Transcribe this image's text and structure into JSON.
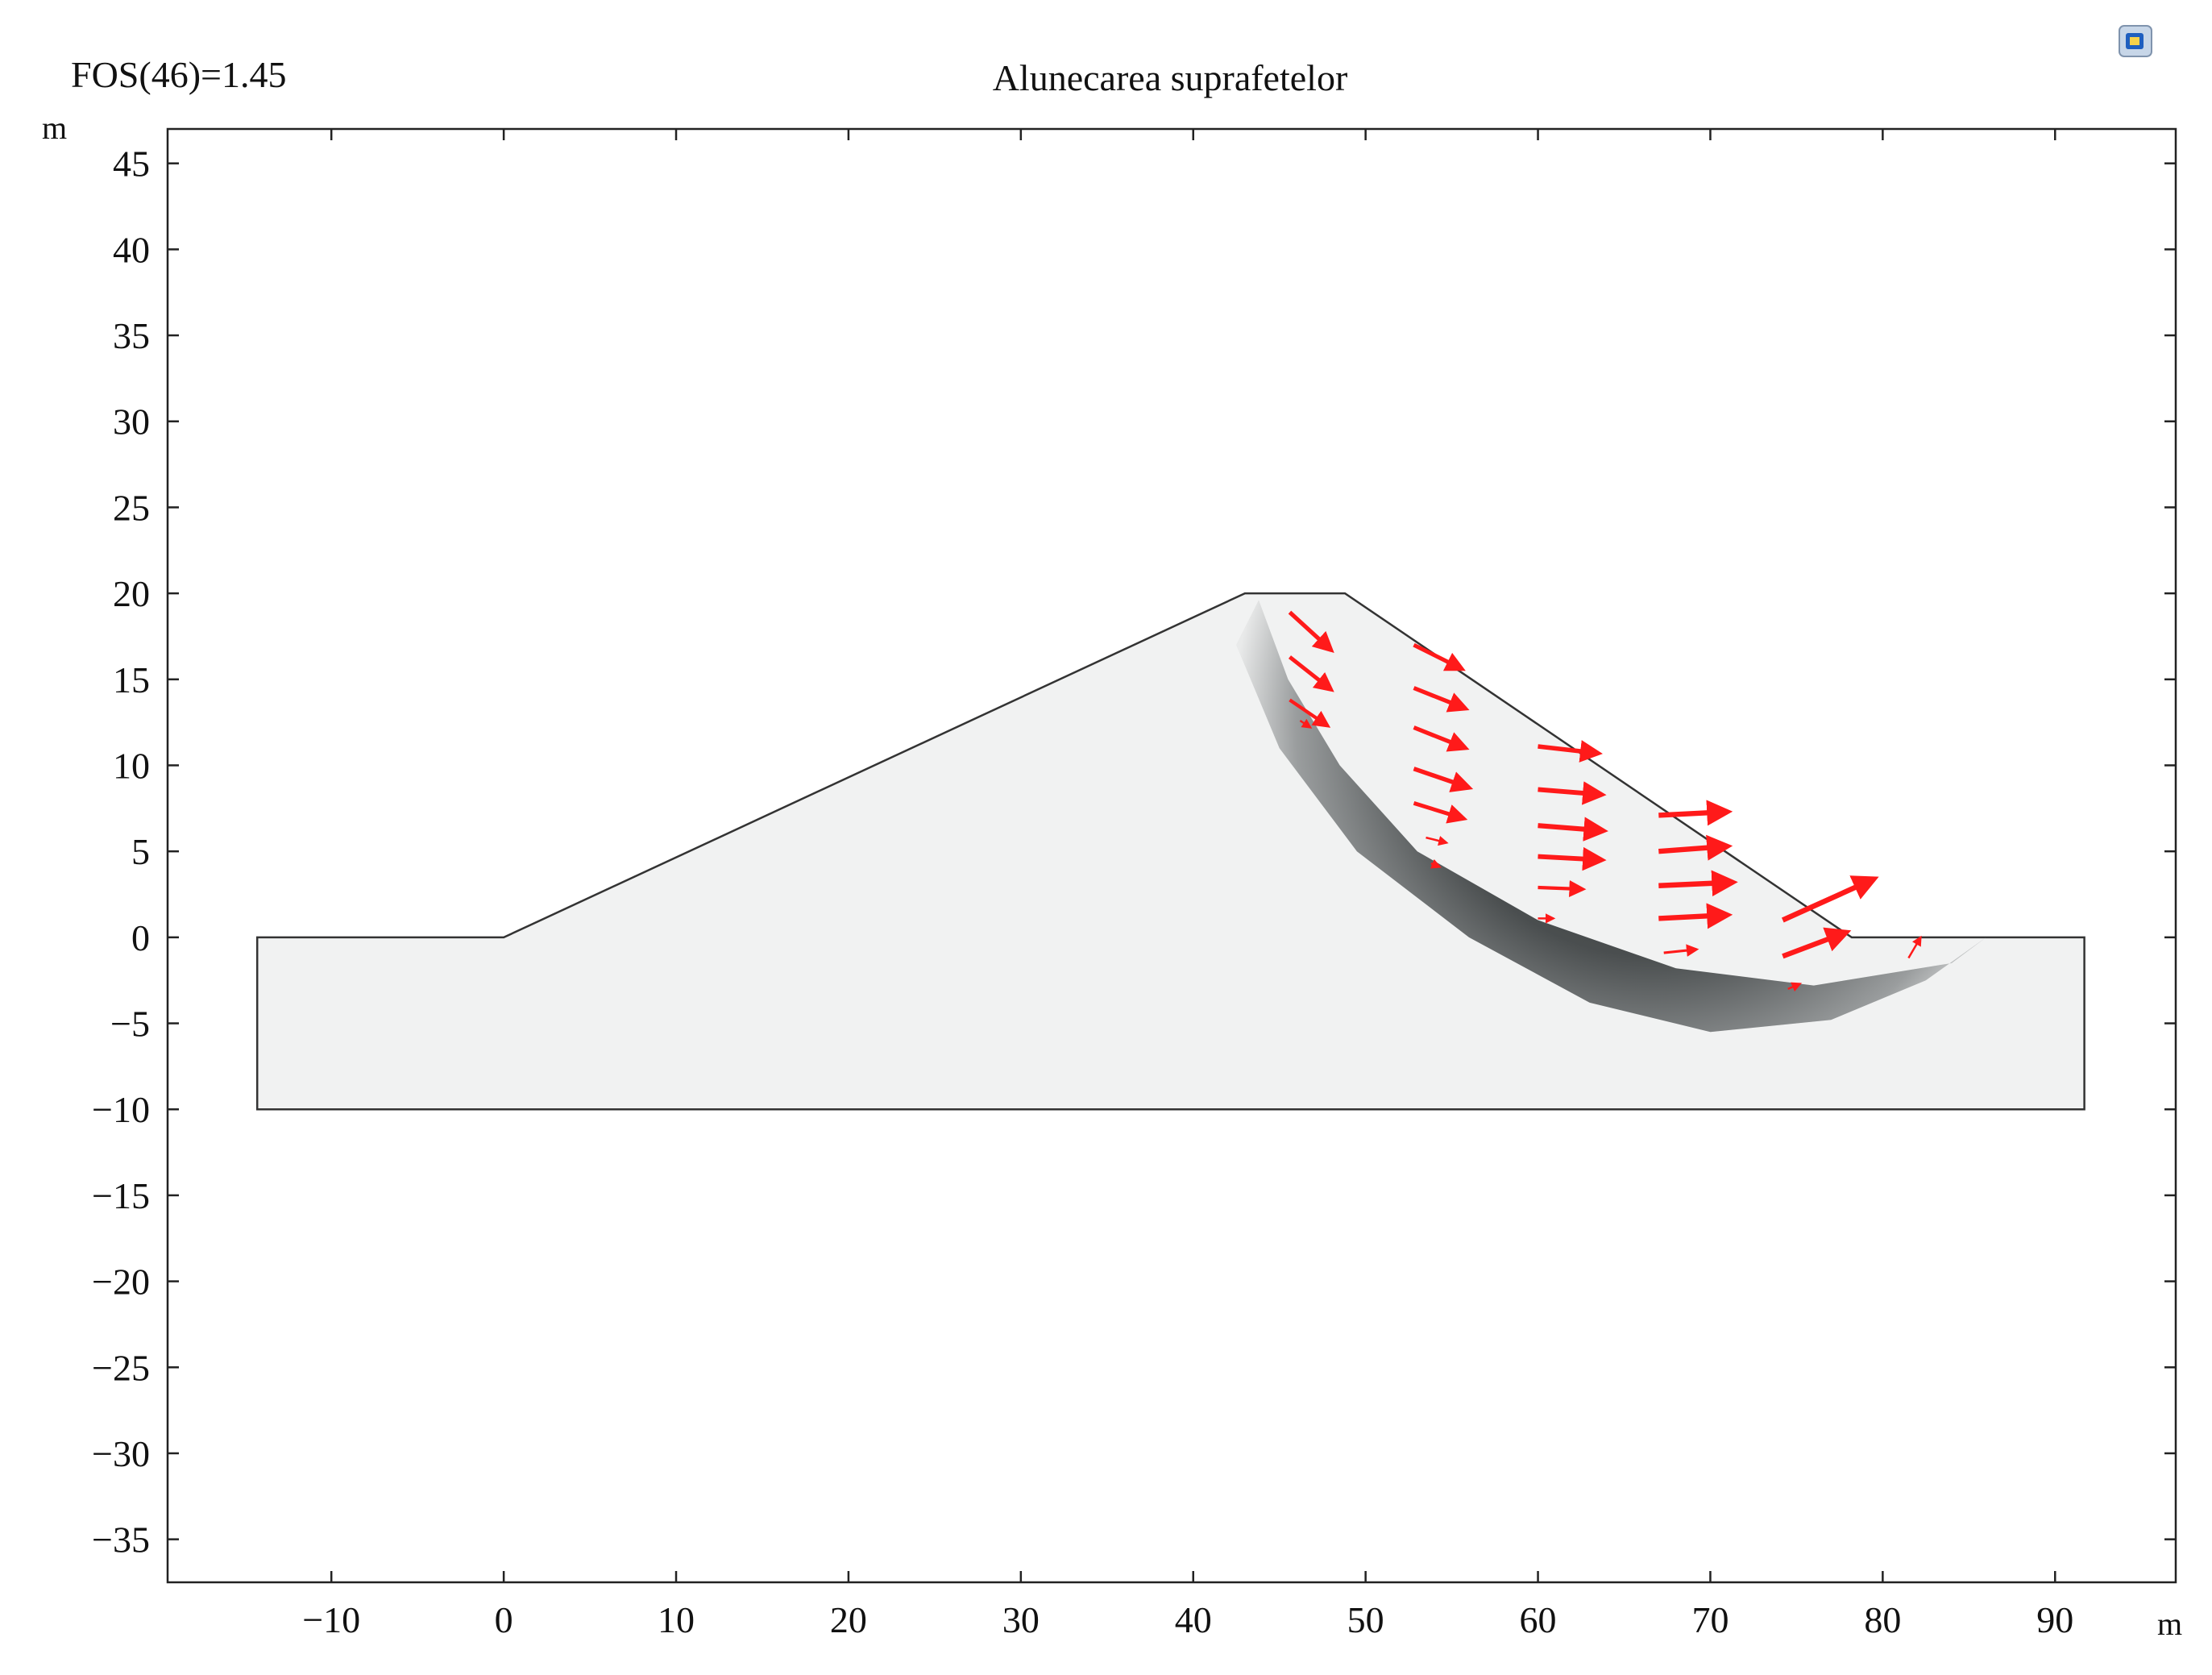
{
  "title": "Alunecarea suprafetelor",
  "annotation": "FOS(46)=1.45",
  "toolbar": {
    "icon": "export-image-icon"
  },
  "colors": {
    "background": "#ffffff",
    "domain_fill": "#f1f2f2",
    "slip_dark": "#2f3233",
    "arrow": "#ff1a1a",
    "outline": "#333333"
  },
  "chart_data": {
    "type": "contour",
    "title": "Alunecarea suprafetelor",
    "annotation": "FOS(46)=1.45",
    "xlabel": "m",
    "ylabel": "m",
    "xlim": [
      -19.5,
      97
    ],
    "ylim": [
      -37.5,
      47
    ],
    "grid": false,
    "xticks": [
      -10,
      0,
      10,
      20,
      30,
      40,
      50,
      60,
      70,
      80,
      90
    ],
    "yticks": [
      45,
      40,
      35,
      30,
      25,
      20,
      15,
      10,
      5,
      0,
      -5,
      -10,
      -15,
      -20,
      -25,
      -30,
      -35
    ],
    "xtick_labels": [
      "−10",
      "0",
      "10",
      "20",
      "30",
      "40",
      "50",
      "60",
      "70",
      "80",
      "90"
    ],
    "ytick_labels": [
      "45",
      "40",
      "35",
      "30",
      "25",
      "20",
      "15",
      "10",
      "5",
      "0",
      "−5",
      "−10",
      "−15",
      "−20",
      "−25",
      "−30",
      "−35"
    ],
    "geometry": [
      [
        -14.3,
        0
      ],
      [
        0,
        0
      ],
      [
        43,
        20
      ],
      [
        48.8,
        20
      ],
      [
        78.2,
        0
      ],
      [
        91.7,
        0
      ],
      [
        91.7,
        -10
      ],
      [
        -14.3,
        -10
      ]
    ],
    "slip_band": {
      "upper": [
        [
          43.8,
          19.6
        ],
        [
          45.5,
          15
        ],
        [
          48.5,
          10
        ],
        [
          53,
          5
        ],
        [
          60,
          1
        ],
        [
          68,
          -1.8
        ],
        [
          76,
          -2.8
        ],
        [
          84,
          -1.5
        ],
        [
          86,
          0
        ]
      ],
      "lower": [
        [
          43.8,
          19.6
        ],
        [
          42.5,
          17
        ],
        [
          45,
          11
        ],
        [
          49.5,
          5
        ],
        [
          56,
          0
        ],
        [
          63,
          -3.8
        ],
        [
          70,
          -5.5
        ],
        [
          77,
          -4.8
        ],
        [
          82.5,
          -2.5
        ],
        [
          86,
          0
        ]
      ]
    },
    "vectors": [
      [
        45.6,
        18.9,
        2.4,
        -2.2
      ],
      [
        45.6,
        16.3,
        2.4,
        -1.9
      ],
      [
        45.6,
        13.8,
        2.2,
        -1.5
      ],
      [
        46.2,
        12.6,
        0.6,
        -0.4
      ],
      [
        52.8,
        17.0,
        2.8,
        -1.4
      ],
      [
        52.8,
        14.5,
        3.0,
        -1.2
      ],
      [
        52.8,
        12.2,
        3.0,
        -1.2
      ],
      [
        52.8,
        9.8,
        3.2,
        -1.1
      ],
      [
        52.8,
        7.8,
        2.9,
        -0.9
      ],
      [
        53.5,
        5.8,
        1.2,
        -0.3
      ],
      [
        53.8,
        4.3,
        0.5,
        -0.2
      ],
      [
        60.0,
        11.1,
        3.5,
        -0.4
      ],
      [
        60.0,
        8.6,
        3.7,
        -0.3
      ],
      [
        60.0,
        6.5,
        3.8,
        -0.3
      ],
      [
        60.0,
        4.7,
        3.7,
        -0.2
      ],
      [
        60.0,
        2.9,
        2.6,
        -0.1
      ],
      [
        60.0,
        1.1,
        0.9,
        0.0
      ],
      [
        67.0,
        7.1,
        4.0,
        0.2
      ],
      [
        67.0,
        5.0,
        4.0,
        0.3
      ],
      [
        67.0,
        3.0,
        4.3,
        0.2
      ],
      [
        67.0,
        1.1,
        4.0,
        0.2
      ],
      [
        67.3,
        -0.9,
        1.9,
        0.2
      ],
      [
        74.2,
        1.0,
        5.3,
        2.4
      ],
      [
        74.2,
        -1.1,
        3.7,
        1.4
      ],
      [
        81.5,
        -1.2,
        0.7,
        1.2
      ],
      [
        74.5,
        -3.0,
        0.7,
        0.3
      ]
    ]
  }
}
